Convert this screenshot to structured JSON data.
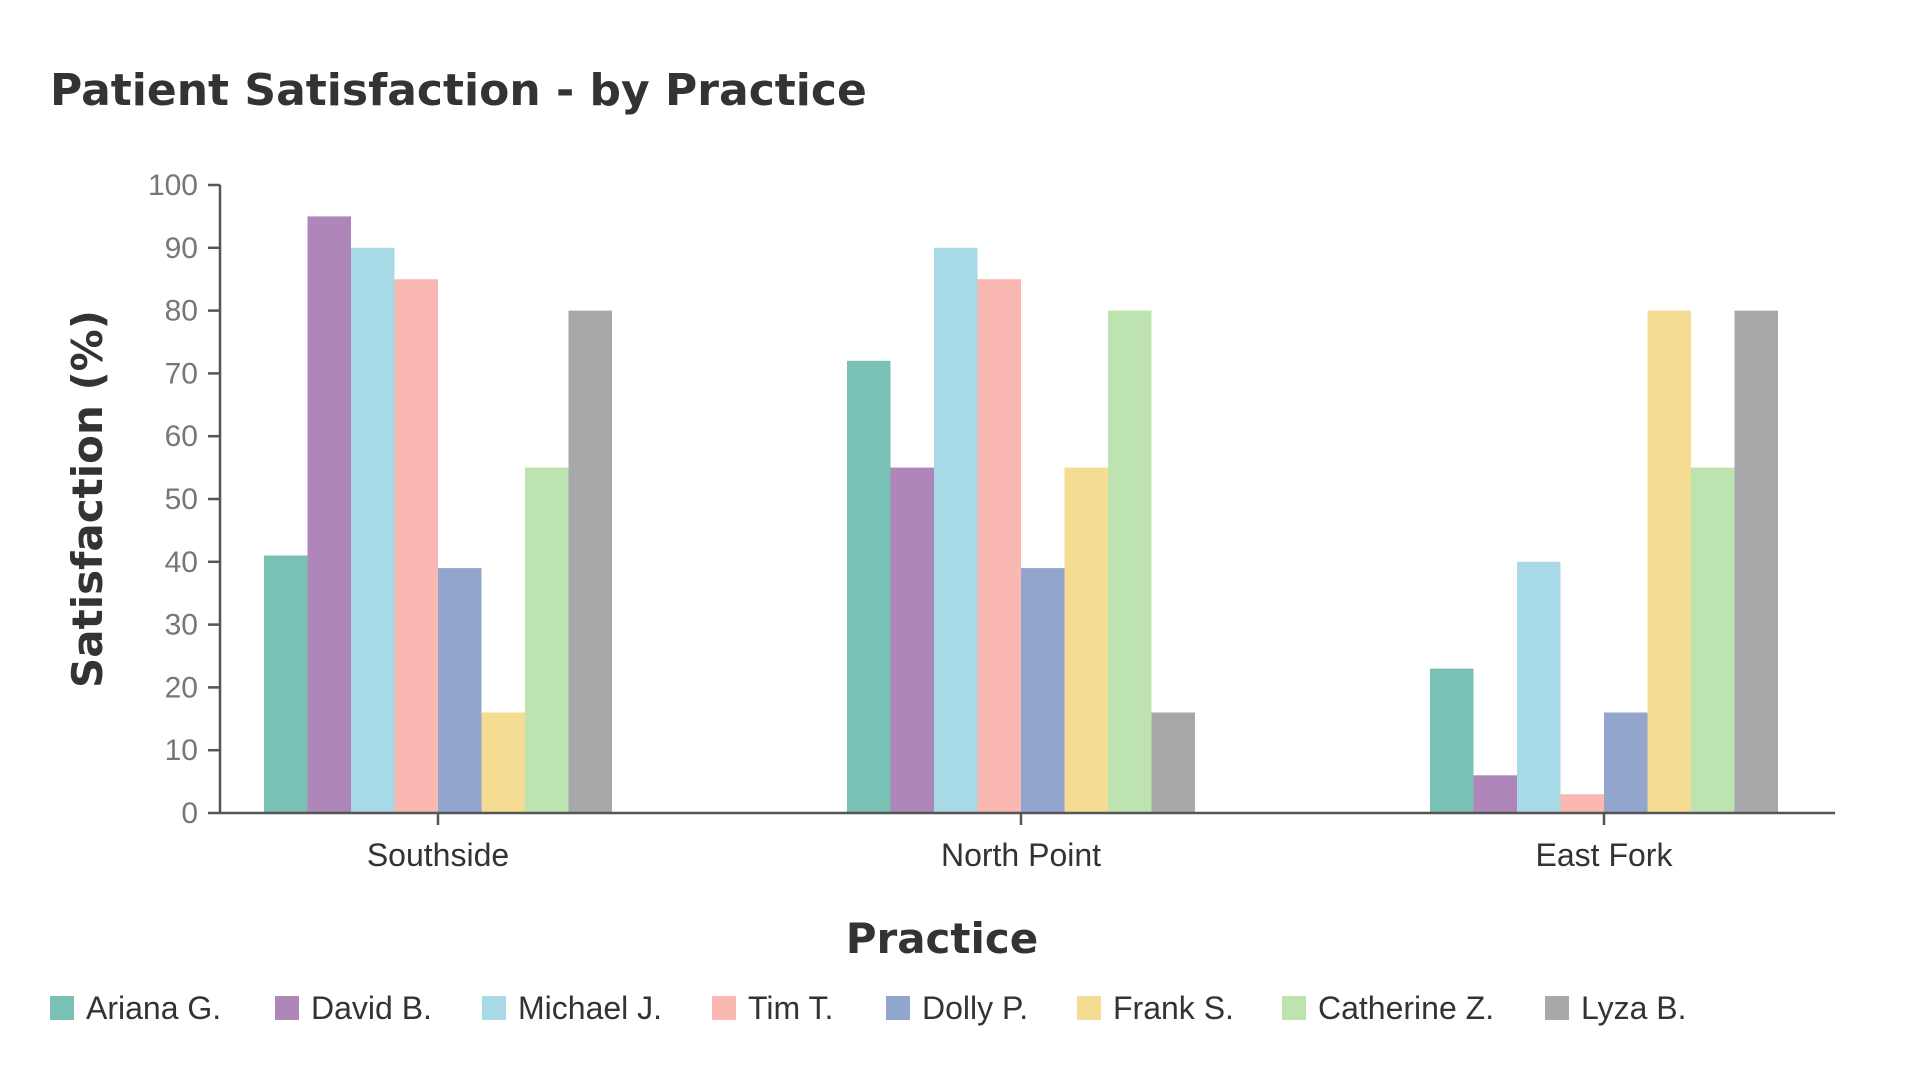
{
  "chart_data": {
    "type": "bar",
    "title": "Patient Satisfaction - by Practice",
    "xlabel": "Practice",
    "ylabel": "Satisfaction (%)",
    "ylim": [
      0,
      100
    ],
    "yticks": [
      0,
      10,
      20,
      30,
      40,
      50,
      60,
      70,
      80,
      90,
      100
    ],
    "categories": [
      "Southside",
      "North Point",
      "East Fork"
    ],
    "legend_position": "bottom",
    "grid": false,
    "series": [
      {
        "name": "Ariana G.",
        "color": "#79c0b5",
        "values": [
          41,
          72,
          23
        ]
      },
      {
        "name": "David B.",
        "color": "#af86b9",
        "values": [
          95,
          55,
          6
        ]
      },
      {
        "name": "Michael J.",
        "color": "#a8d9e6",
        "values": [
          90,
          90,
          40
        ]
      },
      {
        "name": "Tim T.",
        "color": "#f9b9b2",
        "values": [
          85,
          85,
          3
        ]
      },
      {
        "name": "Dolly P.",
        "color": "#92a5cc",
        "values": [
          39,
          39,
          16
        ]
      },
      {
        "name": "Frank S.",
        "color": "#f4dc93",
        "values": [
          16,
          55,
          80
        ]
      },
      {
        "name": "Catherine Z.",
        "color": "#bde4b0",
        "values": [
          55,
          80,
          55
        ]
      },
      {
        "name": "Lyza B.",
        "color": "#a8a8aa",
        "values": [
          80,
          16,
          80
        ]
      }
    ]
  }
}
